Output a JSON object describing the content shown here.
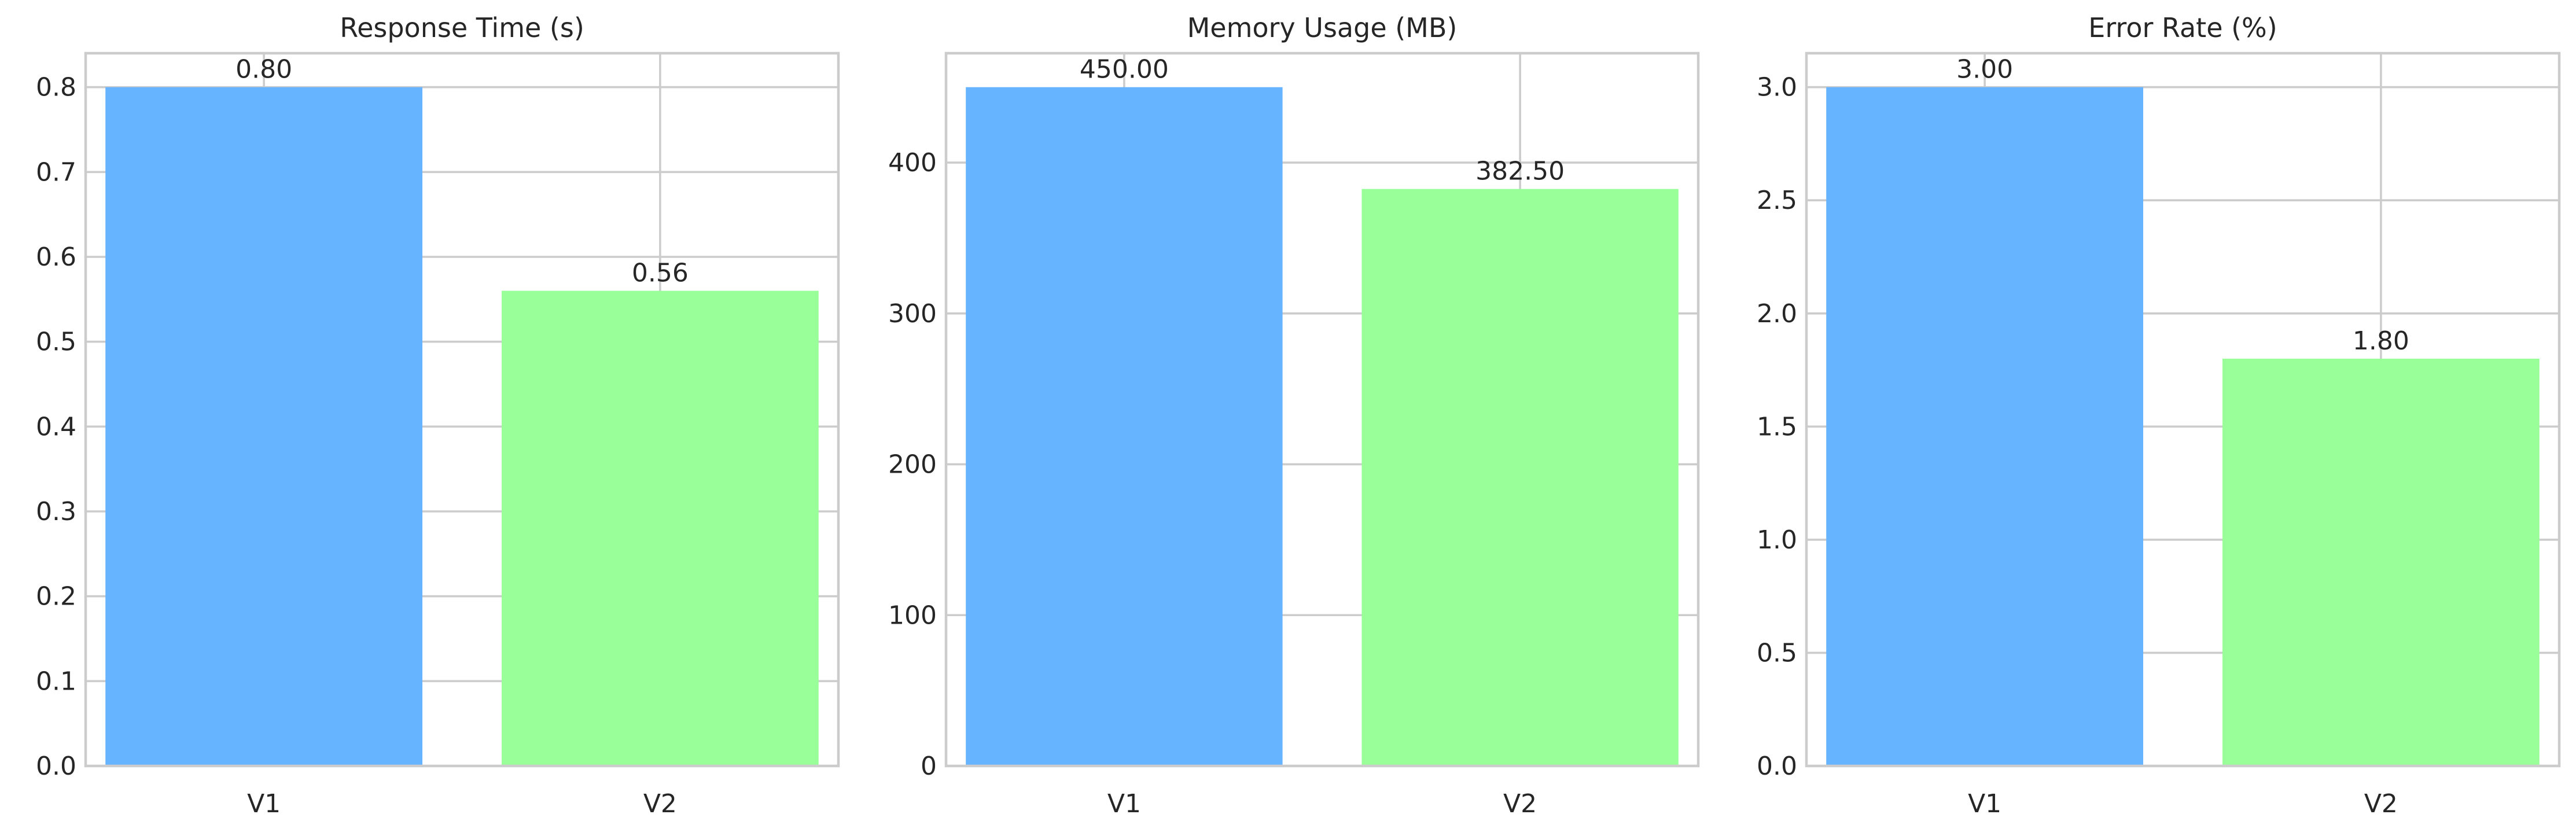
{
  "chart_data": [
    {
      "type": "bar",
      "title": "Response Time (s)",
      "xlabel": "",
      "ylabel": "",
      "categories": [
        "V1",
        "V2"
      ],
      "values": [
        0.8,
        0.56
      ],
      "value_labels": [
        "0.80",
        "0.56"
      ],
      "ylim": [
        0,
        0.84
      ],
      "yticks": [
        0.0,
        0.1,
        0.2,
        0.3,
        0.4,
        0.5,
        0.6,
        0.7,
        0.8
      ],
      "ytick_labels": [
        "0.0",
        "0.1",
        "0.2",
        "0.3",
        "0.4",
        "0.5",
        "0.6",
        "0.7",
        "0.8"
      ],
      "colors": [
        "#66b3ff",
        "#99ff99"
      ],
      "grid": true
    },
    {
      "type": "bar",
      "title": "Memory Usage (MB)",
      "xlabel": "",
      "ylabel": "",
      "categories": [
        "V1",
        "V2"
      ],
      "values": [
        450.0,
        382.5
      ],
      "value_labels": [
        "450.00",
        "382.50"
      ],
      "ylim": [
        0,
        472.5
      ],
      "yticks": [
        0,
        100,
        200,
        300,
        400
      ],
      "ytick_labels": [
        "0",
        "100",
        "200",
        "300",
        "400"
      ],
      "colors": [
        "#66b3ff",
        "#99ff99"
      ],
      "grid": true
    },
    {
      "type": "bar",
      "title": "Error Rate (%)",
      "xlabel": "",
      "ylabel": "",
      "categories": [
        "V1",
        "V2"
      ],
      "values": [
        3.0,
        1.8
      ],
      "value_labels": [
        "3.00",
        "1.80"
      ],
      "ylim": [
        0,
        3.15
      ],
      "yticks": [
        0.0,
        0.5,
        1.0,
        1.5,
        2.0,
        2.5,
        3.0
      ],
      "ytick_labels": [
        "0.0",
        "0.5",
        "1.0",
        "1.5",
        "2.0",
        "2.5",
        "3.0"
      ],
      "colors": [
        "#66b3ff",
        "#99ff99"
      ],
      "grid": true
    }
  ]
}
